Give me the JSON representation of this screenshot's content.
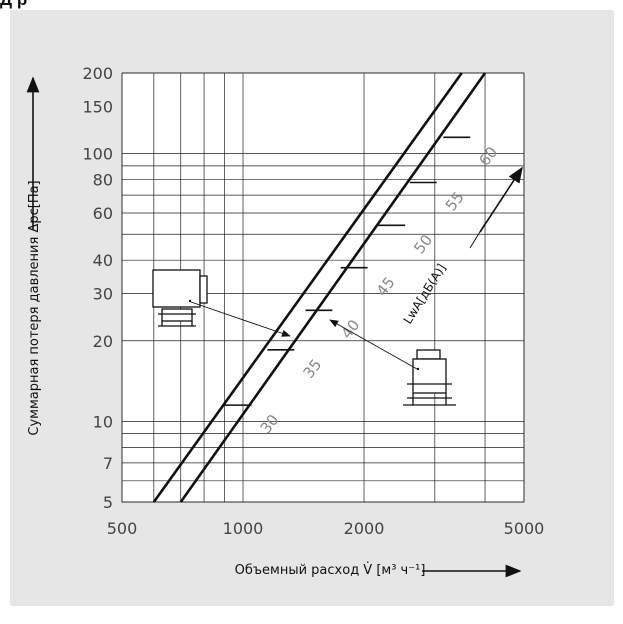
{
  "header": {
    "title": "Д р"
  },
  "chart_data": {
    "type": "line",
    "title": "",
    "xscale": "log",
    "yscale": "log",
    "xlim": [
      500,
      5000
    ],
    "ylim": [
      5,
      200
    ],
    "x_ticks": [
      500,
      1000,
      2000,
      5000
    ],
    "y_ticks": [
      5,
      7,
      10,
      20,
      30,
      40,
      60,
      80,
      100,
      150,
      200
    ],
    "xlabel": "Объемный расход V̇ [м³ ч⁻¹]",
    "ylabel": "Суммарная потеря давления Δpc[Па]",
    "band_label": "LwA[дБ(A)]",
    "grid": true,
    "series": [
      {
        "points": [
          [
            600,
            5
          ],
          [
            3500,
            200
          ]
        ]
      },
      {
        "points": [
          [
            700,
            5
          ],
          [
            4000,
            200
          ]
        ]
      }
    ],
    "sound_marks": [
      {
        "level": "30",
        "x": 900,
        "y": 11.5
      },
      {
        "level": "35",
        "x": 1150,
        "y": 18.5
      },
      {
        "level": "40",
        "x": 1430,
        "y": 26
      },
      {
        "level": "45",
        "x": 1750,
        "y": 37.5
      },
      {
        "level": "50",
        "x": 2170,
        "y": 54
      },
      {
        "level": "55",
        "x": 2600,
        "y": 78
      },
      {
        "level": "60",
        "x": 3150,
        "y": 115
      }
    ]
  }
}
